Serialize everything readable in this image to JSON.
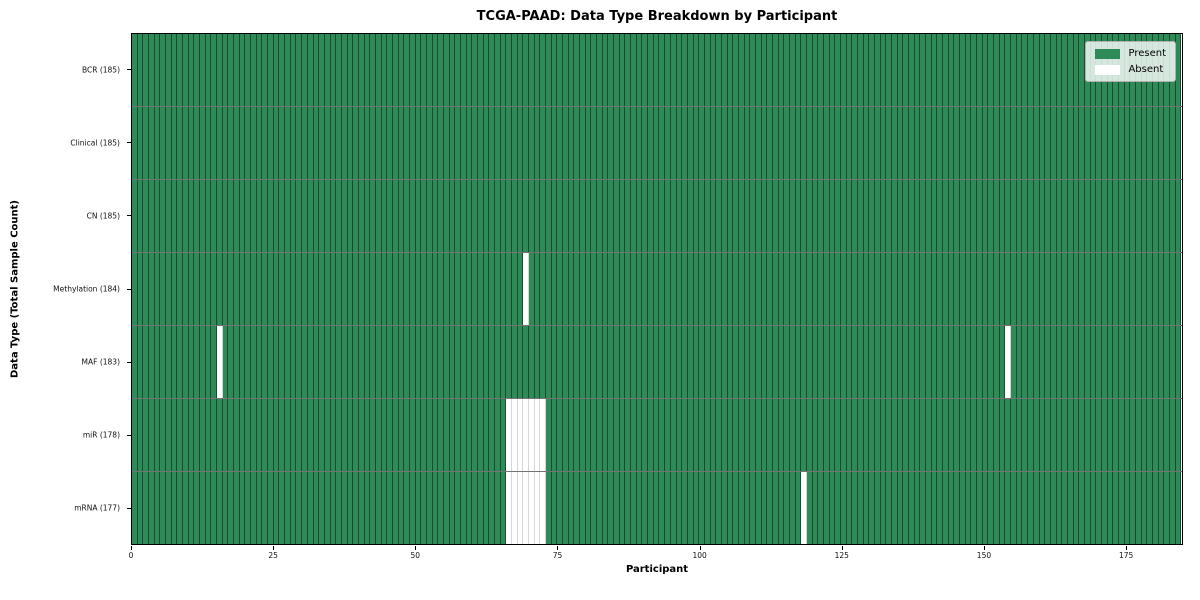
{
  "chart_data": {
    "type": "heatmap",
    "title": "TCGA-PAAD: Data Type Breakdown by Participant",
    "xlabel": "Participant",
    "ylabel": "Data Type (Total Sample Count)",
    "xlim": [
      0,
      185
    ],
    "x_ticks": [
      0,
      25,
      50,
      75,
      100,
      125,
      150,
      175
    ],
    "n_participants": 185,
    "grid": false,
    "legend_position": "upper right",
    "legend_items": [
      {
        "label": "Present",
        "color": "#2e8b57"
      },
      {
        "label": "Absent",
        "color": "#ffffff"
      }
    ],
    "colors": {
      "present": "#2e8b57",
      "absent": "#ffffff"
    },
    "rows": [
      {
        "data_type": "BCR",
        "label": "BCR (185)",
        "present_count": 185,
        "absent_participants": []
      },
      {
        "data_type": "Clinical",
        "label": "Clinical (185)",
        "present_count": 185,
        "absent_participants": []
      },
      {
        "data_type": "CN",
        "label": "CN (185)",
        "present_count": 185,
        "absent_participants": []
      },
      {
        "data_type": "Methylation",
        "label": "Methylation (184)",
        "present_count": 184,
        "absent_participants": [
          69
        ]
      },
      {
        "data_type": "MAF",
        "label": "MAF (183)",
        "present_count": 183,
        "absent_participants": [
          15,
          154
        ]
      },
      {
        "data_type": "miR",
        "label": "miR (178)",
        "present_count": 178,
        "absent_participants": [
          66,
          67,
          68,
          69,
          70,
          71,
          72
        ]
      },
      {
        "data_type": "mRNA",
        "label": "mRNA (177)",
        "present_count": 177,
        "absent_participants": [
          66,
          67,
          68,
          69,
          70,
          71,
          72,
          118
        ]
      }
    ]
  }
}
